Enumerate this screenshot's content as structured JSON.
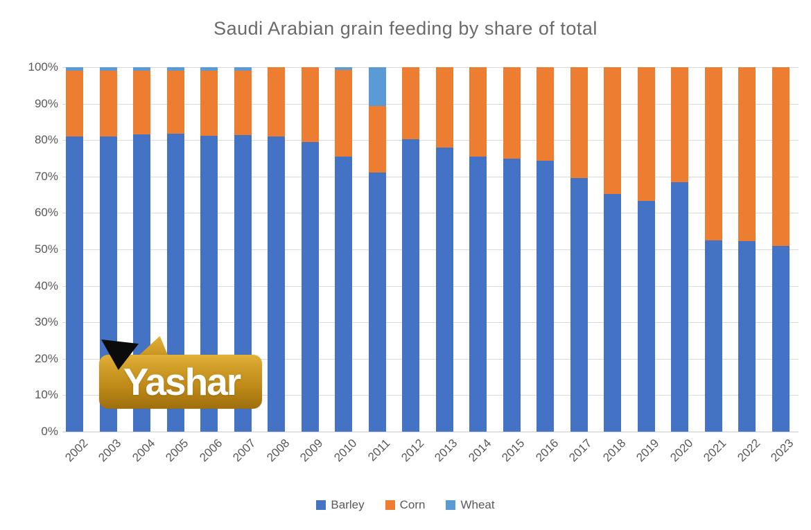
{
  "title": "Saudi Arabian grain feeding by share of total",
  "watermark": {
    "text": "Yashar"
  },
  "legend": {
    "items": [
      {
        "label": "Barley",
        "color": "#4472C4"
      },
      {
        "label": "Corn",
        "color": "#ED7D31"
      },
      {
        "label": "Wheat",
        "color": "#5B9BD5"
      }
    ]
  },
  "chart_data": {
    "type": "bar",
    "stacked": true,
    "title": "Saudi Arabian grain feeding by share of total",
    "categories": [
      "2002",
      "2003",
      "2004",
      "2005",
      "2006",
      "2007",
      "2008",
      "2009",
      "2010",
      "2011",
      "2012",
      "2013",
      "2014",
      "2015",
      "2016",
      "2017",
      "2018",
      "2019",
      "2020",
      "2021",
      "2022",
      "2023"
    ],
    "series": [
      {
        "name": "Barley",
        "color": "#4472C4",
        "values": [
          81,
          81,
          81.5,
          81.8,
          81.2,
          81.3,
          81,
          79.4,
          75.5,
          71.2,
          80.2,
          77.9,
          75.5,
          75,
          74.3,
          69.5,
          65.3,
          63.3,
          68.5,
          52.5,
          52.2,
          51
        ]
      },
      {
        "name": "Corn",
        "color": "#ED7D31",
        "values": [
          18,
          18,
          17.5,
          17.2,
          17.8,
          17.7,
          19,
          20.6,
          23.7,
          18.2,
          19.8,
          22.1,
          24.5,
          25,
          25.7,
          30.5,
          34.7,
          36.7,
          31.5,
          47.5,
          47.8,
          49
        ]
      },
      {
        "name": "Wheat",
        "color": "#5B9BD5",
        "values": [
          1,
          1,
          1,
          1,
          1,
          1,
          0,
          0,
          0.8,
          10.6,
          0,
          0,
          0,
          0,
          0,
          0,
          0,
          0,
          0,
          0,
          0,
          0
        ]
      }
    ],
    "xlabel": "",
    "ylabel": "",
    "ylim": [
      0,
      100
    ],
    "y_tick_step": 10,
    "y_tick_suffix": "%",
    "grid": true,
    "legend_position": "bottom"
  }
}
